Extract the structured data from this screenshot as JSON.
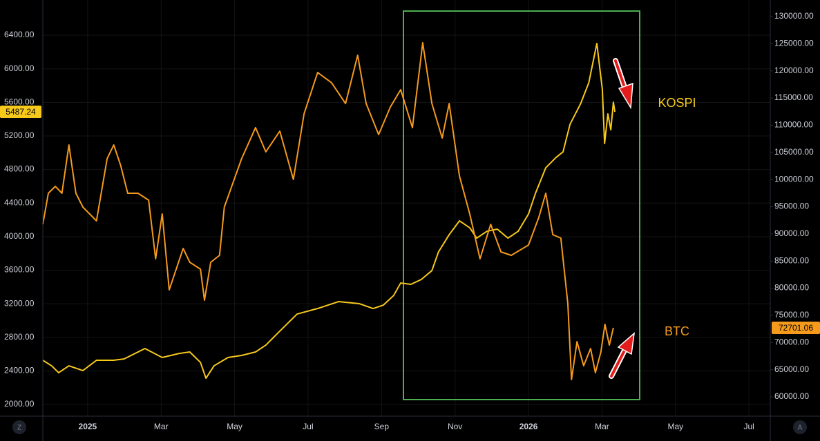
{
  "chart_data": {
    "type": "line",
    "xlim": [
      -1.22,
      18.58
    ],
    "xticks": [
      {
        "value": 0,
        "label": "2025"
      },
      {
        "value": 2,
        "label": "Mar"
      },
      {
        "value": 4,
        "label": "May"
      },
      {
        "value": 6,
        "label": "Jul"
      },
      {
        "value": 8,
        "label": "Sep"
      },
      {
        "value": 10,
        "label": "Nov"
      },
      {
        "value": 12,
        "label": "2026"
      },
      {
        "value": 14,
        "label": "Mar"
      },
      {
        "value": 16,
        "label": "May"
      },
      {
        "value": 18,
        "label": "Jul"
      }
    ],
    "ylim": [
      1860,
      6820
    ],
    "yticks": [
      {
        "value": 2000,
        "label": "2000.00"
      },
      {
        "value": 2400,
        "label": "2400.00"
      },
      {
        "value": 2800,
        "label": "2800.00"
      },
      {
        "value": 3200,
        "label": "3200.00"
      },
      {
        "value": 3600,
        "label": "3600.00"
      },
      {
        "value": 4000,
        "label": "4000.00"
      },
      {
        "value": 4400,
        "label": "4400.00"
      },
      {
        "value": 4800,
        "label": "4800.00"
      },
      {
        "value": 5200,
        "label": "5200.00"
      },
      {
        "value": 5600,
        "label": "5600.00"
      },
      {
        "value": 6000,
        "label": "6000.00"
      },
      {
        "value": 6400,
        "label": "6400.00"
      }
    ],
    "y2lim": [
      56440,
      133050
    ],
    "y2ticks": [
      {
        "value": 60000,
        "label": "60000.00"
      },
      {
        "value": 65000,
        "label": "65000.00"
      },
      {
        "value": 70000,
        "label": "70000.00"
      },
      {
        "value": 75000,
        "label": "75000.00"
      },
      {
        "value": 80000,
        "label": "80000.00"
      },
      {
        "value": 85000,
        "label": "85000.00"
      },
      {
        "value": 90000,
        "label": "90000.00"
      },
      {
        "value": 95000,
        "label": "95000.00"
      },
      {
        "value": 100000,
        "label": "100000.00"
      },
      {
        "value": 105000,
        "label": "105000.00"
      },
      {
        "value": 110000,
        "label": "110000.00"
      },
      {
        "value": 115000,
        "label": "115000.00"
      },
      {
        "value": 120000,
        "label": "120000.00"
      },
      {
        "value": 125000,
        "label": "125000.00"
      },
      {
        "value": 130000,
        "label": "130000.00"
      }
    ],
    "grid": true,
    "series": [
      {
        "name": "KOSPI",
        "color": "#f7c91b",
        "axis": "y",
        "last_value": 5487.24,
        "x": [
          -1.22,
          -0.98,
          -0.79,
          -0.51,
          -0.13,
          0.24,
          0.7,
          0.99,
          1.56,
          2.03,
          2.5,
          2.78,
          3.07,
          3.22,
          3.44,
          3.82,
          4.19,
          4.57,
          4.85,
          5.13,
          5.7,
          6.26,
          6.83,
          7.39,
          7.77,
          8.05,
          8.33,
          8.52,
          8.8,
          9.08,
          9.37,
          9.55,
          9.84,
          10.12,
          10.4,
          10.59,
          10.87,
          11.15,
          11.44,
          11.72,
          12.0,
          12.19,
          12.47,
          12.75,
          12.94,
          13.13,
          13.42,
          13.64,
          13.86,
          14.01,
          14.07,
          14.16,
          14.24,
          14.31,
          14.35
        ],
        "values": [
          2526,
          2460,
          2378,
          2460,
          2403,
          2526,
          2526,
          2542,
          2666,
          2559,
          2608,
          2625,
          2501,
          2312,
          2460,
          2559,
          2584,
          2625,
          2707,
          2830,
          3077,
          3143,
          3225,
          3201,
          3143,
          3184,
          3299,
          3447,
          3431,
          3489,
          3595,
          3818,
          4023,
          4188,
          4105,
          3982,
          4064,
          4089,
          3982,
          4064,
          4270,
          4517,
          4821,
          4944,
          5010,
          5339,
          5586,
          5833,
          6302,
          5751,
          5109,
          5463,
          5273,
          5603,
          5487
        ]
      },
      {
        "name": "BTC",
        "color": "#f59a1c",
        "axis": "y2",
        "last_value": 72701.06,
        "x": [
          -1.22,
          -1.07,
          -0.88,
          -0.7,
          -0.51,
          -0.32,
          -0.13,
          0.24,
          0.53,
          0.71,
          0.9,
          1.09,
          1.37,
          1.66,
          1.85,
          2.03,
          2.22,
          2.41,
          2.6,
          2.78,
          3.07,
          3.18,
          3.35,
          3.59,
          3.72,
          4.19,
          4.57,
          4.85,
          5.23,
          5.6,
          5.89,
          6.26,
          6.64,
          7.02,
          7.35,
          7.58,
          7.92,
          8.24,
          8.52,
          8.84,
          9.12,
          9.37,
          9.65,
          9.84,
          10.12,
          10.4,
          10.68,
          10.97,
          11.25,
          11.53,
          12.0,
          12.28,
          12.47,
          12.66,
          12.88,
          13.07,
          13.17,
          13.32,
          13.5,
          13.69,
          13.82,
          13.97,
          14.08,
          14.2,
          14.31
        ],
        "values": [
          91760,
          97476,
          98746,
          97476,
          106370,
          97476,
          94935,
          92394,
          103830,
          106370,
          102560,
          97476,
          97476,
          96206,
          85406,
          93665,
          79689,
          83500,
          87312,
          84771,
          83500,
          77783,
          84771,
          86041,
          94935,
          103830,
          109550,
          105100,
          108910,
          100020,
          112090,
          119710,
          117810,
          113990,
          122880,
          113990,
          108280,
          113360,
          116540,
          109550,
          125170,
          113990,
          107640,
          113990,
          100650,
          93665,
          85406,
          91760,
          86676,
          86041,
          87947,
          93030,
          97476,
          89853,
          89218,
          77148,
          63173,
          70161,
          65714,
          68890,
          64443,
          68255,
          73336,
          69525,
          72701
        ]
      }
    ]
  },
  "ui": {
    "left_button": "Z",
    "right_button": "A"
  }
}
